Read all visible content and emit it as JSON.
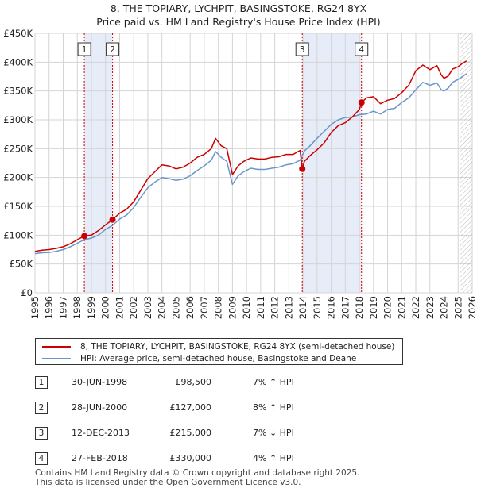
{
  "chart_data": {
    "type": "line",
    "title": "8, THE TOPIARY, LYCHPIT, BASINGSTOKE, RG24 8YX",
    "subtitle": "Price paid vs. HM Land Registry's House Price Index (HPI)",
    "xlabel": "",
    "ylabel": "",
    "xlim": [
      1995,
      2026
    ],
    "ylim": [
      0,
      450000
    ],
    "x_ticks": [
      "1995",
      "1996",
      "1997",
      "1998",
      "1999",
      "2000",
      "2001",
      "2002",
      "2003",
      "2004",
      "2005",
      "2006",
      "2007",
      "2008",
      "2009",
      "2010",
      "2011",
      "2012",
      "2013",
      "2014",
      "2015",
      "2016",
      "2017",
      "2018",
      "2019",
      "2020",
      "2021",
      "2022",
      "2023",
      "2024",
      "2025",
      "2026"
    ],
    "y_ticks": [
      {
        "value": 0,
        "label": "£0"
      },
      {
        "value": 50000,
        "label": "£50K"
      },
      {
        "value": 100000,
        "label": "£100K"
      },
      {
        "value": 150000,
        "label": "£150K"
      },
      {
        "value": 200000,
        "label": "£200K"
      },
      {
        "value": 250000,
        "label": "£250K"
      },
      {
        "value": 300000,
        "label": "£300K"
      },
      {
        "value": 350000,
        "label": "£350K"
      },
      {
        "value": 400000,
        "label": "£400K"
      },
      {
        "value": 450000,
        "label": "£450K"
      }
    ],
    "grid": true,
    "shaded_ranges": [
      [
        1998.5,
        2000.5
      ],
      [
        2013.95,
        2018.15
      ]
    ],
    "forecast_start": 2025.1,
    "series": [
      {
        "name": "8, THE TOPIARY, LYCHPIT, BASINGSTOKE, RG24 8YX (semi-detached house)",
        "color": "#cc0000",
        "x": [
          1995.0,
          1995.5,
          1996.0,
          1996.5,
          1997.0,
          1997.5,
          1998.0,
          1998.5,
          1999.0,
          1999.5,
          2000.0,
          2000.5,
          2001.0,
          2001.5,
          2002.0,
          2002.5,
          2003.0,
          2003.5,
          2004.0,
          2004.5,
          2005.0,
          2005.5,
          2006.0,
          2006.5,
          2007.0,
          2007.5,
          2007.8,
          2008.2,
          2008.6,
          2009.0,
          2009.4,
          2009.8,
          2010.3,
          2010.8,
          2011.3,
          2011.8,
          2012.3,
          2012.8,
          2013.3,
          2013.8,
          2013.95,
          2014.1,
          2014.5,
          2015.0,
          2015.5,
          2016.0,
          2016.5,
          2017.0,
          2017.5,
          2018.0,
          2018.15,
          2018.5,
          2019.0,
          2019.5,
          2020.0,
          2020.5,
          2021.0,
          2021.5,
          2022.0,
          2022.5,
          2023.0,
          2023.5,
          2023.8,
          2024.0,
          2024.3,
          2024.6,
          2025.0,
          2025.3,
          2025.6
        ],
        "values": [
          72000,
          74000,
          75000,
          77000,
          80000,
          85000,
          92000,
          98500,
          100000,
          108000,
          118000,
          127000,
          138000,
          145000,
          158000,
          178000,
          198000,
          210000,
          222000,
          220000,
          215000,
          218000,
          225000,
          235000,
          240000,
          250000,
          268000,
          255000,
          250000,
          205000,
          220000,
          228000,
          234000,
          232000,
          232000,
          235000,
          236000,
          240000,
          240000,
          247000,
          215000,
          228000,
          238000,
          248000,
          260000,
          278000,
          290000,
          295000,
          305000,
          318000,
          330000,
          338000,
          340000,
          328000,
          334000,
          337000,
          347000,
          360000,
          385000,
          395000,
          387000,
          394000,
          378000,
          372000,
          376000,
          388000,
          392000,
          398000,
          402000
        ]
      },
      {
        "name": "HPI: Average price, semi-detached house, Basingstoke and Deane",
        "color": "#6b96c9",
        "x": [
          1995.0,
          1995.5,
          1996.0,
          1996.5,
          1997.0,
          1997.5,
          1998.0,
          1998.5,
          1999.0,
          1999.5,
          2000.0,
          2000.5,
          2001.0,
          2001.5,
          2002.0,
          2002.5,
          2003.0,
          2003.5,
          2004.0,
          2004.5,
          2005.0,
          2005.5,
          2006.0,
          2006.5,
          2007.0,
          2007.5,
          2007.8,
          2008.2,
          2008.6,
          2009.0,
          2009.4,
          2009.8,
          2010.3,
          2010.8,
          2011.3,
          2011.8,
          2012.3,
          2012.8,
          2013.3,
          2013.8,
          2014.1,
          2014.5,
          2015.0,
          2015.5,
          2016.0,
          2016.5,
          2017.0,
          2017.5,
          2018.0,
          2018.5,
          2019.0,
          2019.5,
          2020.0,
          2020.5,
          2021.0,
          2021.5,
          2022.0,
          2022.5,
          2023.0,
          2023.5,
          2023.8,
          2024.0,
          2024.3,
          2024.6,
          2025.0,
          2025.3,
          2025.6
        ],
        "values": [
          68000,
          69500,
          70000,
          72000,
          75000,
          80000,
          86000,
          92000,
          95000,
          100000,
          110000,
          117000,
          128000,
          135000,
          148000,
          166000,
          182000,
          192000,
          200000,
          198000,
          195000,
          197000,
          203000,
          212000,
          220000,
          230000,
          245000,
          235000,
          228000,
          188000,
          203000,
          210000,
          216000,
          214000,
          214000,
          216000,
          218000,
          222000,
          224000,
          230000,
          246000,
          255000,
          268000,
          280000,
          292000,
          300000,
          304000,
          305000,
          309000,
          310000,
          315000,
          310000,
          318000,
          320000,
          330000,
          338000,
          352000,
          365000,
          360000,
          364000,
          352000,
          350000,
          355000,
          365000,
          370000,
          375000,
          380000
        ]
      }
    ],
    "sales": [
      {
        "num": "1",
        "x": 1998.5,
        "value": 98500
      },
      {
        "num": "2",
        "x": 2000.5,
        "value": 127000
      },
      {
        "num": "3",
        "x": 2013.95,
        "value": 215000
      },
      {
        "num": "4",
        "x": 2018.15,
        "value": 330000
      }
    ]
  },
  "legend": {
    "red_label": "8, THE TOPIARY, LYCHPIT, BASINGSTOKE, RG24 8YX (semi-detached house)",
    "blue_label": "HPI: Average price, semi-detached house, Basingstoke and Deane"
  },
  "transactions": [
    {
      "num": "1",
      "date": "30-JUN-1998",
      "price": "£98,500",
      "hpi": "7% ↑ HPI"
    },
    {
      "num": "2",
      "date": "28-JUN-2000",
      "price": "£127,000",
      "hpi": "8% ↑ HPI"
    },
    {
      "num": "3",
      "date": "12-DEC-2013",
      "price": "£215,000",
      "hpi": "7% ↓ HPI"
    },
    {
      "num": "4",
      "date": "27-FEB-2018",
      "price": "£330,000",
      "hpi": "4% ↑ HPI"
    }
  ],
  "footer": {
    "line1": "Contains HM Land Registry data © Crown copyright and database right 2025.",
    "line2": "This data is licensed under the Open Government Licence v3.0."
  }
}
